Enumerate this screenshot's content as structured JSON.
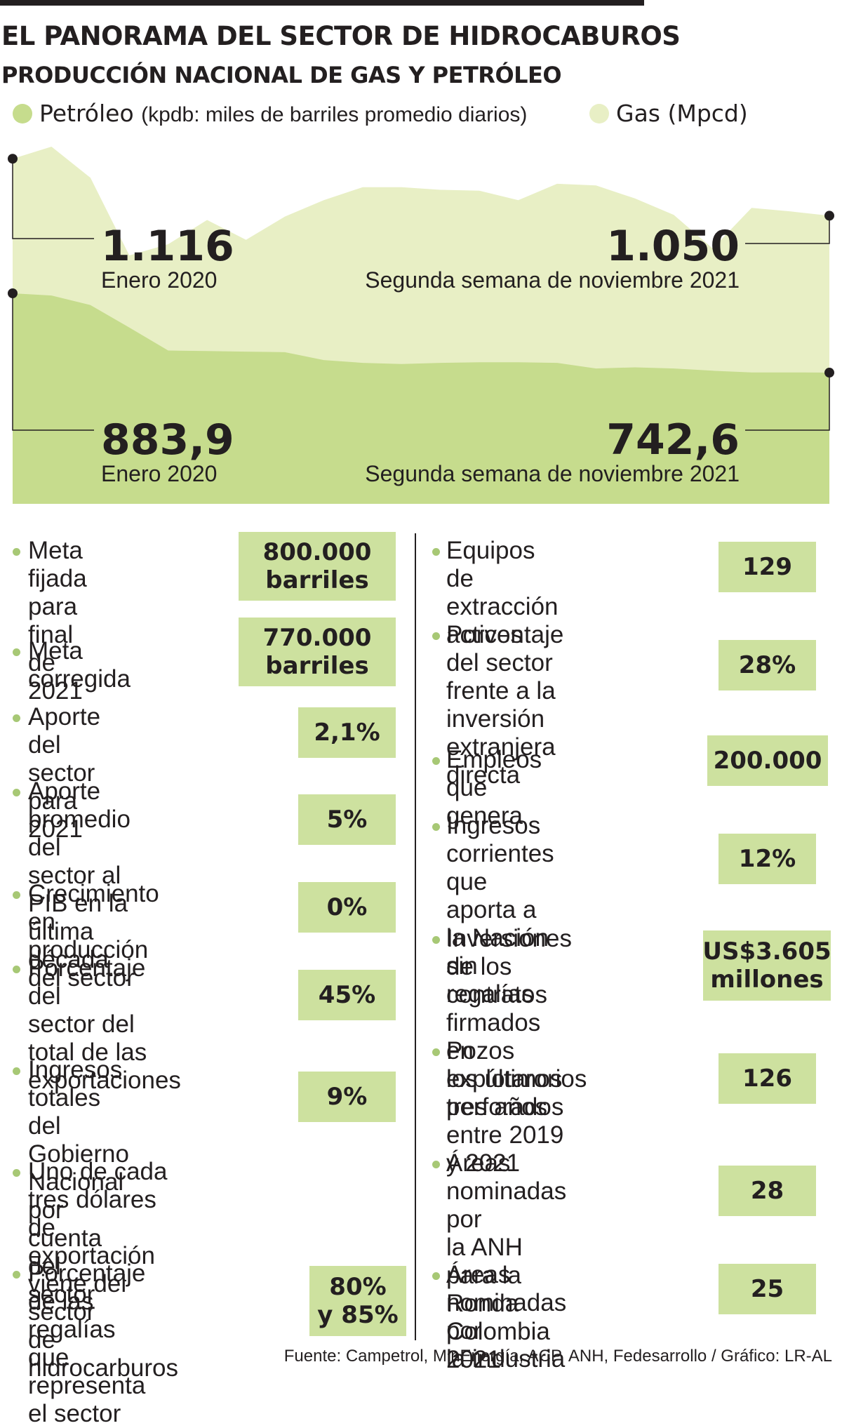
{
  "title": "EL PANORAMA DEL SECTOR DE HIDROCABUROS",
  "subtitle": "PRODUCCIÓN NACIONAL DE GAS Y PETRÓLEO",
  "legend": {
    "oil_label": "Petróleo",
    "oil_unit": "(kpdb: miles de barriles promedio diarios)",
    "gas_label": "Gas (Mpcd)"
  },
  "colors": {
    "oil": "#c6dc8d",
    "gas": "#e8efc5",
    "box": "#cde19f",
    "bullet": "#a7c875"
  },
  "chart_data": {
    "type": "area",
    "series": [
      {
        "name": "Gas (Mpcd)",
        "values": [
          1116,
          1130,
          1094,
          1004,
          1017,
          1045,
          1022,
          1049,
          1068,
          1083,
          1083,
          1080,
          1079,
          1068,
          1087,
          1085,
          1070,
          1051,
          1012,
          1059,
          1055,
          1050
        ],
        "start_label": "1.116",
        "start_caption": "Enero 2020",
        "end_label": "1.050",
        "end_caption": "Segunda semana de noviembre 2021"
      },
      {
        "name": "Petróleo (kpdb)",
        "values": [
          883.9,
          880,
          863,
          823,
          782,
          781,
          780,
          779,
          765,
          760,
          758,
          760,
          761,
          761,
          760,
          750,
          752,
          750,
          746,
          743,
          743,
          742.6
        ],
        "start_label": "883,9",
        "start_caption": "Enero 2020",
        "end_label": "742,6",
        "end_caption": "Segunda semana de noviembre 2021"
      }
    ]
  },
  "left_items": [
    {
      "text": "Meta fijada para\nfinal de 2021",
      "value": "800.000\nbarriles"
    },
    {
      "text": "Meta corregida",
      "value": "770.000\nbarriles"
    },
    {
      "text": "Aporte del sector\npara 2021",
      "value": "2,1%"
    },
    {
      "text": "Aporte promedio\ndel sector al PIB en la\núltima década",
      "value": "5%"
    },
    {
      "text": "Crecimiento en\nproducción del sector",
      "value": "0%"
    },
    {
      "text": "Porcentaje del\nsector del total de las\nexportaciones",
      "value": "45%"
    },
    {
      "text": "Ingresos totales del\nGobierno Nacional por\ncuenta del sector",
      "value": "9%"
    },
    {
      "text": "Uno de cada tres dólares de\nexportación viene del sector\nde hidrocarburos"
    },
    {
      "text": "Porcentaje de las\nregalías que representa\nel sector",
      "value": "80%\ny 85%"
    }
  ],
  "right_items": [
    {
      "text": "Equipos de\nextracción activos",
      "value": "129"
    },
    {
      "text": "Porcentaje del sector\nfrente a la inversión\nextranjera directa",
      "value": "28%"
    },
    {
      "text": "Empleos que genera",
      "value": "200.000"
    },
    {
      "text": "Ingresos corrientes\nque aporta a la Nación\nsin regalías",
      "value": "12%"
    },
    {
      "text": "Inversiones de los\ncontratos firmados en\nlos últimos tres años",
      "value": "US$3.605\nmillones"
    },
    {
      "text": "Pozos explotarorios\nperforados entre 2019\ny 2021",
      "value": "126"
    },
    {
      "text": "Áreas nominadas por\nla ANH para la Ronda\nColombia 2021",
      "value": "28"
    },
    {
      "text": "Áreas nominadas por\nla industria",
      "value": "25"
    }
  ],
  "source": "Fuente: Campetrol, MinEnergía, ACP, ANH, Fedesarrollo / Gráfico: LR-AL"
}
